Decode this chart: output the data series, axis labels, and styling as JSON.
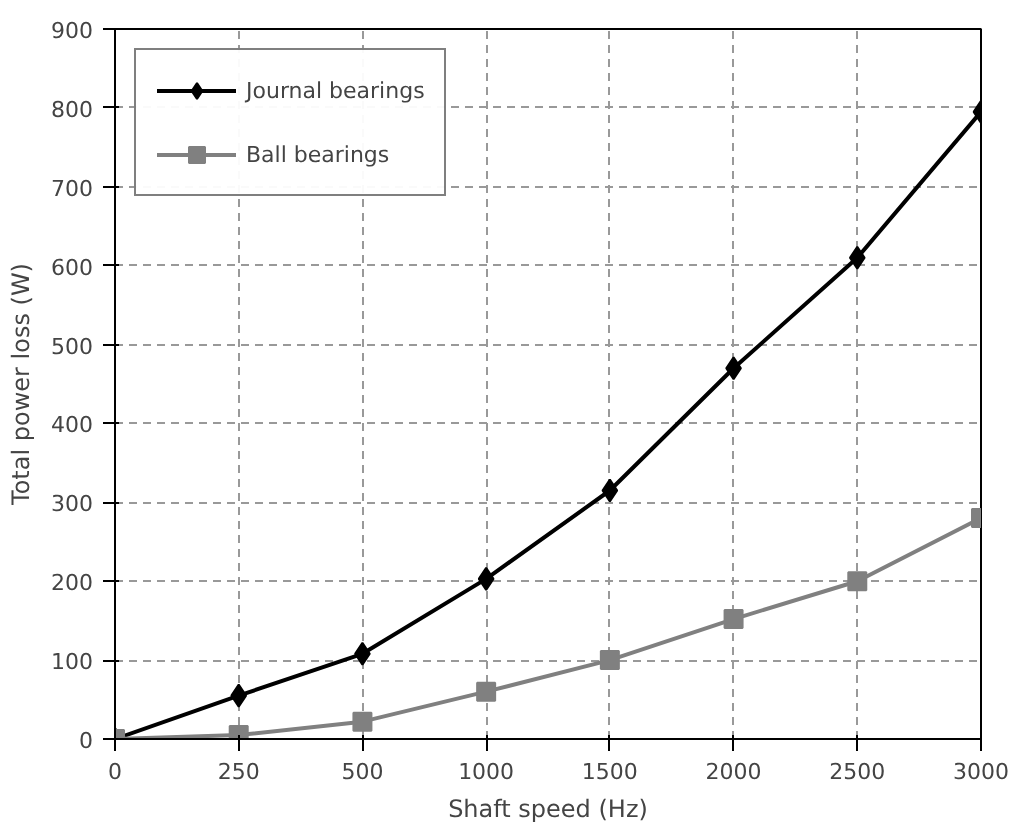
{
  "chart_data": {
    "type": "line",
    "xlabel": "Shaft speed (Hz)",
    "ylabel": "Total power loss (W)",
    "categories": [
      "0",
      "250",
      "500",
      "1000",
      "1500",
      "2000",
      "2500",
      "3000"
    ],
    "ylim": [
      0,
      900
    ],
    "yticks": [
      0,
      100,
      200,
      300,
      400,
      500,
      600,
      700,
      800,
      900
    ],
    "grid": true,
    "legend": "top left",
    "series": [
      {
        "name": "Journal bearings",
        "color": "#000000",
        "marker": "diamond",
        "values": [
          0,
          55,
          108,
          203,
          315,
          470,
          610,
          795
        ]
      },
      {
        "name": "Ball bearings",
        "color": "#808080",
        "marker": "square",
        "values": [
          0,
          5,
          22,
          60,
          100,
          152,
          200,
          280
        ]
      }
    ]
  }
}
